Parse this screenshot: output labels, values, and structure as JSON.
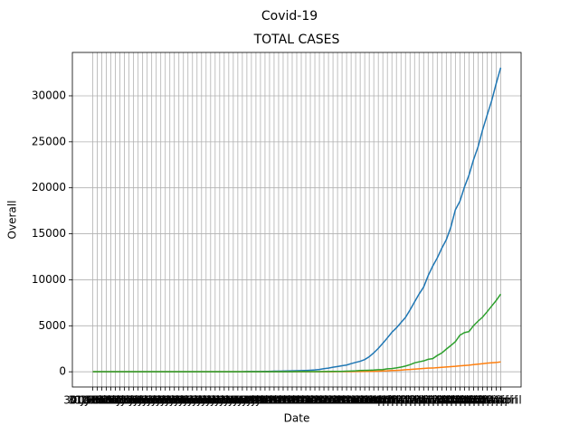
{
  "chart_data": {
    "type": "line",
    "suptitle": "Covid-19",
    "title": "TOTAL CASES",
    "xlabel": "Date",
    "ylabel": "Overall",
    "categories": [
      "30 January",
      "31 January",
      "01 February",
      "02 February",
      "03 February",
      "04 February",
      "05 February",
      "06 February",
      "07 February",
      "08 February",
      "09 February",
      "10 February",
      "11 February",
      "12 February",
      "13 February",
      "14 February",
      "15 February",
      "16 February",
      "17 February",
      "18 February",
      "19 February",
      "20 February",
      "21 February",
      "22 February",
      "23 February",
      "24 February",
      "25 February",
      "26 February",
      "27 February",
      "28 February",
      "29 February",
      "01 March",
      "02 March",
      "03 March",
      "04 March",
      "05 March",
      "06 March",
      "07 March",
      "08 March",
      "09 March",
      "10 March",
      "11 March",
      "12 March",
      "13 March",
      "14 March",
      "15 March",
      "16 March",
      "17 March",
      "18 March",
      "19 March",
      "20 March",
      "21 March",
      "22 March",
      "23 March",
      "24 March",
      "25 March",
      "26 March",
      "27 March",
      "28 March",
      "29 March",
      "30 March",
      "31 March",
      "01 April",
      "02 April",
      "03 April",
      "04 April",
      "05 April",
      "06 April",
      "07 April",
      "08 April",
      "09 April",
      "10 April",
      "11 April",
      "12 April",
      "13 April",
      "14 April",
      "15 April",
      "16 April",
      "17 April",
      "18 April",
      "19 April",
      "20 April",
      "21 April",
      "22 April",
      "23 April",
      "24 April",
      "25 April",
      "26 April",
      "27 April",
      "28 April",
      "29 April"
    ],
    "series": [
      {
        "color": "#1f77b4",
        "values": [
          1,
          1,
          1,
          2,
          3,
          3,
          3,
          3,
          3,
          3,
          3,
          3,
          3,
          3,
          3,
          3,
          3,
          3,
          3,
          3,
          3,
          3,
          3,
          3,
          3,
          3,
          3,
          3,
          3,
          3,
          3,
          3,
          5,
          6,
          28,
          30,
          31,
          34,
          39,
          48,
          63,
          71,
          81,
          91,
          102,
          112,
          126,
          146,
          171,
          198,
          256,
          334,
          403,
          497,
          571,
          657,
          730,
          883,
          1019,
          1139,
          1326,
          1635,
          2059,
          2545,
          3105,
          3684,
          4293,
          4777,
          5350,
          5915,
          6728,
          7599,
          8453,
          9211,
          10454,
          11485,
          12371,
          13432,
          14354,
          15722,
          17615,
          18539,
          20080,
          21370,
          23039,
          24447,
          26283,
          27890,
          29451,
          31324,
          33062
        ]
      },
      {
        "color": "#ff7f0e",
        "values": [
          0,
          0,
          0,
          0,
          0,
          0,
          0,
          0,
          0,
          0,
          0,
          0,
          0,
          0,
          0,
          0,
          0,
          0,
          0,
          0,
          0,
          0,
          0,
          0,
          0,
          0,
          0,
          0,
          0,
          0,
          0,
          0,
          0,
          0,
          0,
          0,
          0,
          0,
          0,
          0,
          0,
          0,
          1,
          2,
          2,
          2,
          2,
          3,
          3,
          4,
          5,
          5,
          7,
          10,
          12,
          13,
          17,
          20,
          25,
          27,
          37,
          47,
          58,
          72,
          86,
          99,
          136,
          150,
          178,
          226,
          246,
          288,
          331,
          358,
          393,
          405,
          448,
          486,
          521,
          559,
          592,
          645,
          681,
          721,
          780,
          825,
          881,
          939,
          974,
          1008,
          1079
        ]
      },
      {
        "color": "#2ca02c",
        "values": [
          0,
          0,
          0,
          0,
          0,
          0,
          0,
          0,
          0,
          0,
          0,
          0,
          0,
          0,
          0,
          0,
          0,
          0,
          0,
          0,
          0,
          3,
          3,
          3,
          3,
          3,
          3,
          3,
          3,
          3,
          3,
          3,
          3,
          3,
          3,
          3,
          3,
          3,
          3,
          3,
          3,
          4,
          4,
          10,
          10,
          13,
          13,
          14,
          15,
          20,
          23,
          27,
          27,
          40,
          43,
          43,
          67,
          79,
          102,
          138,
          151,
          169,
          191,
          230,
          240,
          325,
          352,
          421,
          506,
          620,
          774,
          969,
          1080,
          1181,
          1359,
          1432,
          1768,
          2041,
          2463,
          2854,
          3273,
          3975,
          4258,
          4370,
          5012,
          5498,
          5939,
          6523,
          7137,
          7747,
          8437
        ]
      }
    ],
    "ylim": [
      -1653,
      34715
    ],
    "yticks": [
      0,
      5000,
      10000,
      15000,
      20000,
      25000,
      30000
    ],
    "grid": true
  }
}
